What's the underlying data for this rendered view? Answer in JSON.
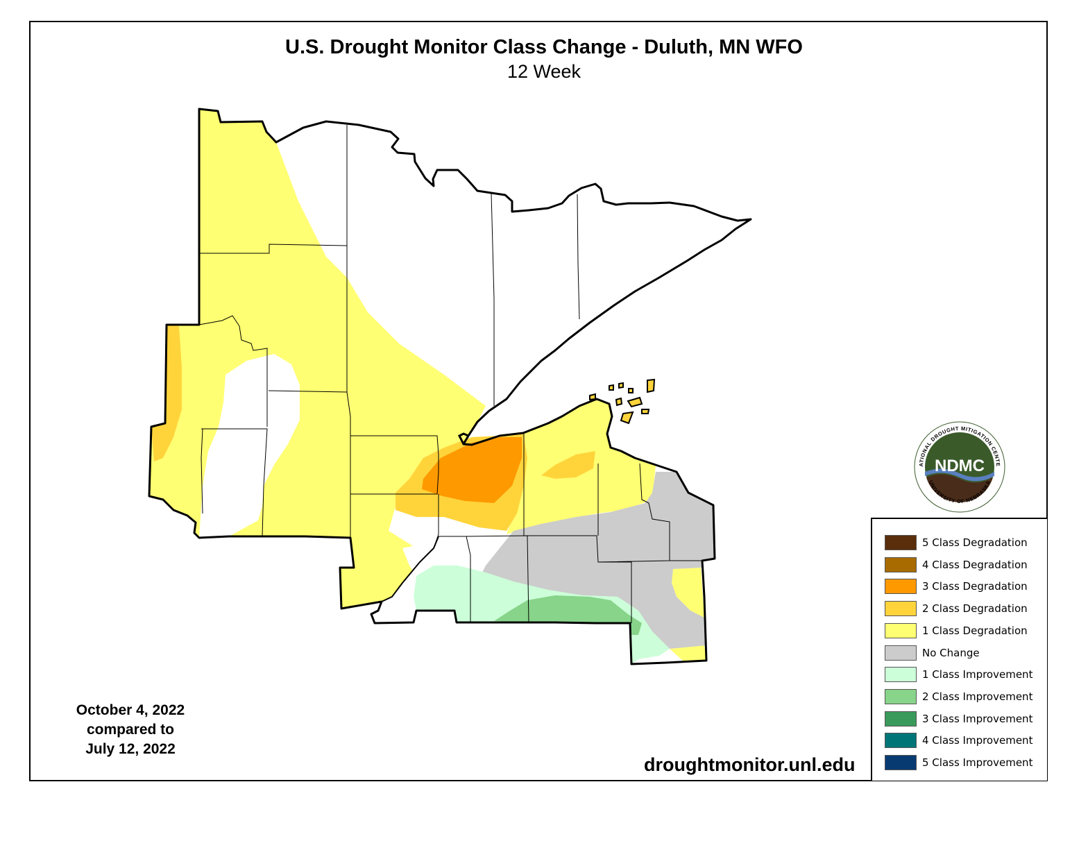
{
  "title": "U.S. Drought Monitor Class Change - Duluth, MN WFO",
  "subtitle": "12 Week",
  "dates": {
    "line1": "October 4, 2022",
    "line2": "compared to",
    "line3": "July 12, 2022"
  },
  "website": "droughtmonitor.unl.edu",
  "logo": {
    "abbreviation": "NDMC",
    "top_text": "NATIONAL DROUGHT MITIGATION CENTER",
    "bottom_text": "UNIVERSITY OF NEBRASKA",
    "colors": {
      "green": "#3a5a2a",
      "blue": "#5a7fc0",
      "brown": "#4a2c1a"
    }
  },
  "legend": [
    {
      "label": "5 Class Degradation",
      "color": "#5a2e0a"
    },
    {
      "label": "4 Class Degradation",
      "color": "#a86b00"
    },
    {
      "label": "3 Class Degradation",
      "color": "#ff9900"
    },
    {
      "label": "2 Class Degradation",
      "color": "#ffd43b"
    },
    {
      "label": "1 Class Degradation",
      "color": "#ffff73"
    },
    {
      "label": "No Change",
      "color": "#cccccc"
    },
    {
      "label": "1 Class Improvement",
      "color": "#ccffd9"
    },
    {
      "label": "2 Class Improvement",
      "color": "#88d48a"
    },
    {
      "label": "3 Class Improvement",
      "color": "#3a9a5c"
    },
    {
      "label": "4 Class Improvement",
      "color": "#007578"
    },
    {
      "label": "5 Class Improvement",
      "color": "#083a72"
    }
  ],
  "map_colors": {
    "deg1": "#ffff73",
    "deg2": "#ffd43b",
    "deg3": "#ff9900",
    "nochange": "#cccccc",
    "imp1": "#ccffd9",
    "imp2": "#88d48a",
    "lake": "#ffffff",
    "outline": "#000000"
  }
}
